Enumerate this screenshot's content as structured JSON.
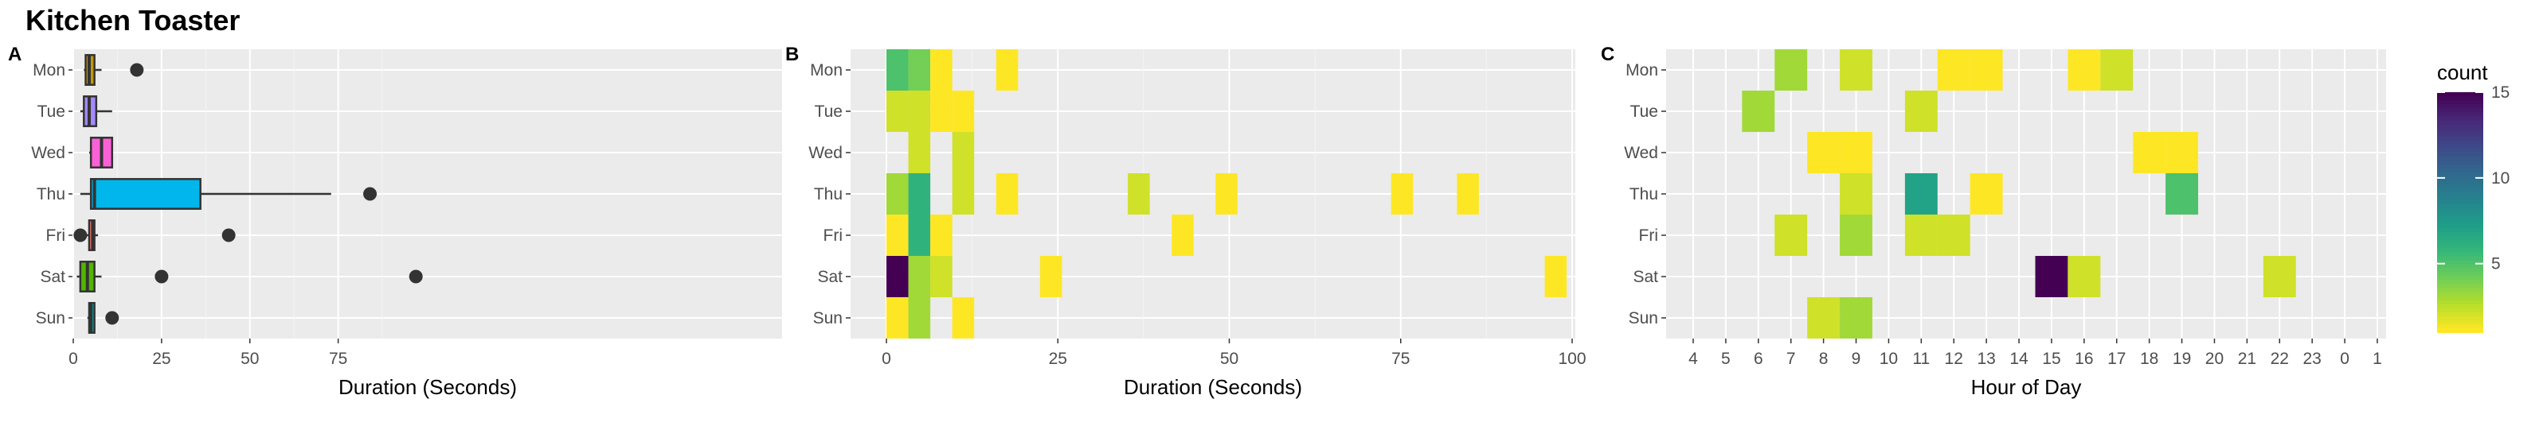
{
  "title": "Kitchen Toaster",
  "chart_data": [
    {
      "panel": "A",
      "type": "boxplot",
      "xlabel": "Duration (Seconds)",
      "ylabel": "",
      "categories": [
        "Mon",
        "Tue",
        "Wed",
        "Thu",
        "Fri",
        "Sat",
        "Sun"
      ],
      "xlim": [
        0,
        97
      ],
      "xticks": [
        0,
        25,
        50,
        75
      ],
      "grid": true,
      "boxes": [
        {
          "day": "Mon",
          "color": "#C49A00",
          "whisker_low": 3,
          "q1": 3.5,
          "median": 4.5,
          "q3": 6,
          "whisker_high": 8,
          "outliers": [
            18
          ]
        },
        {
          "day": "Tue",
          "color": "#A58AFF",
          "whisker_low": 2,
          "q1": 3,
          "median": 4.5,
          "q3": 6.5,
          "whisker_high": 11,
          "outliers": []
        },
        {
          "day": "Wed",
          "color": "#FB61D7",
          "whisker_low": 4.5,
          "q1": 5,
          "median": 8,
          "q3": 11,
          "whisker_high": 11,
          "outliers": []
        },
        {
          "day": "Thu",
          "color": "#00B6EB",
          "whisker_low": 2,
          "q1": 5,
          "median": 6,
          "q3": 36,
          "whisker_high": 73,
          "outliers": [
            84
          ]
        },
        {
          "day": "Fri",
          "color": "#F8766D",
          "whisker_low": 3.5,
          "q1": 4.5,
          "median": 5.5,
          "q3": 6,
          "whisker_high": 7,
          "outliers": [
            2,
            44
          ]
        },
        {
          "day": "Sat",
          "color": "#53B400",
          "whisker_low": 1,
          "q1": 2,
          "median": 4,
          "q3": 6,
          "whisker_high": 8,
          "outliers": [
            25,
            97
          ]
        },
        {
          "day": "Sun",
          "color": "#00A6A7",
          "whisker_low": 4,
          "q1": 4.5,
          "median": 5,
          "q3": 6,
          "whisker_high": 6,
          "outliers": [
            11
          ]
        }
      ]
    },
    {
      "panel": "B",
      "type": "heatmap",
      "xlabel": "Duration (Seconds)",
      "ylabel": "",
      "categories": [
        "Mon",
        "Tue",
        "Wed",
        "Thu",
        "Fri",
        "Sat",
        "Sun"
      ],
      "xlim": [
        0,
        100
      ],
      "xticks": [
        0,
        25,
        50,
        75,
        100
      ],
      "grid": true,
      "bin_width": 3.2,
      "cells": [
        {
          "day": "Mon",
          "x": 0,
          "count": 5
        },
        {
          "day": "Mon",
          "x": 3.2,
          "count": 4
        },
        {
          "day": "Mon",
          "x": 6.4,
          "count": 1
        },
        {
          "day": "Mon",
          "x": 16,
          "count": 1
        },
        {
          "day": "Tue",
          "x": 0,
          "count": 2
        },
        {
          "day": "Tue",
          "x": 3.2,
          "count": 2
        },
        {
          "day": "Tue",
          "x": 6.4,
          "count": 1
        },
        {
          "day": "Tue",
          "x": 9.6,
          "count": 1
        },
        {
          "day": "Wed",
          "x": 3.2,
          "count": 2
        },
        {
          "day": "Wed",
          "x": 9.6,
          "count": 2
        },
        {
          "day": "Thu",
          "x": 0,
          "count": 3
        },
        {
          "day": "Thu",
          "x": 3.2,
          "count": 6
        },
        {
          "day": "Thu",
          "x": 9.6,
          "count": 2
        },
        {
          "day": "Thu",
          "x": 16,
          "count": 1
        },
        {
          "day": "Thu",
          "x": 35.2,
          "count": 2
        },
        {
          "day": "Thu",
          "x": 48,
          "count": 1
        },
        {
          "day": "Thu",
          "x": 73.6,
          "count": 1
        },
        {
          "day": "Thu",
          "x": 83.2,
          "count": 1
        },
        {
          "day": "Fri",
          "x": 0,
          "count": 1
        },
        {
          "day": "Fri",
          "x": 3.2,
          "count": 6
        },
        {
          "day": "Fri",
          "x": 6.4,
          "count": 1
        },
        {
          "day": "Fri",
          "x": 41.6,
          "count": 1
        },
        {
          "day": "Sat",
          "x": 0,
          "count": 15
        },
        {
          "day": "Sat",
          "x": 3.2,
          "count": 3
        },
        {
          "day": "Sat",
          "x": 6.4,
          "count": 2
        },
        {
          "day": "Sat",
          "x": 22.4,
          "count": 1
        },
        {
          "day": "Sat",
          "x": 96,
          "count": 1
        },
        {
          "day": "Sun",
          "x": 0,
          "count": 1
        },
        {
          "day": "Sun",
          "x": 3.2,
          "count": 3
        },
        {
          "day": "Sun",
          "x": 9.6,
          "count": 1
        }
      ]
    },
    {
      "panel": "C",
      "type": "heatmap",
      "xlabel": "Hour of Day",
      "ylabel": "",
      "categories": [
        "Mon",
        "Tue",
        "Wed",
        "Thu",
        "Fri",
        "Sat",
        "Sun"
      ],
      "xcategories": [
        "4",
        "5",
        "6",
        "7",
        "8",
        "9",
        "10",
        "11",
        "12",
        "13",
        "14",
        "15",
        "16",
        "17",
        "18",
        "19",
        "20",
        "21",
        "22",
        "23",
        "0",
        "1"
      ],
      "grid": true,
      "cells": [
        {
          "day": "Mon",
          "hour": "7",
          "count": 3
        },
        {
          "day": "Mon",
          "hour": "9",
          "count": 2
        },
        {
          "day": "Mon",
          "hour": "12",
          "count": 1
        },
        {
          "day": "Mon",
          "hour": "13",
          "count": 1
        },
        {
          "day": "Mon",
          "hour": "16",
          "count": 1
        },
        {
          "day": "Mon",
          "hour": "17",
          "count": 2
        },
        {
          "day": "Tue",
          "hour": "6",
          "count": 3
        },
        {
          "day": "Tue",
          "hour": "11",
          "count": 2
        },
        {
          "day": "Wed",
          "hour": "8",
          "count": 1
        },
        {
          "day": "Wed",
          "hour": "9",
          "count": 1
        },
        {
          "day": "Wed",
          "hour": "18",
          "count": 1
        },
        {
          "day": "Wed",
          "hour": "19",
          "count": 1
        },
        {
          "day": "Thu",
          "hour": "9",
          "count": 2
        },
        {
          "day": "Thu",
          "hour": "11",
          "count": 7
        },
        {
          "day": "Thu",
          "hour": "13",
          "count": 1
        },
        {
          "day": "Thu",
          "hour": "19",
          "count": 5
        },
        {
          "day": "Fri",
          "hour": "7",
          "count": 2
        },
        {
          "day": "Fri",
          "hour": "9",
          "count": 3
        },
        {
          "day": "Fri",
          "hour": "11",
          "count": 2
        },
        {
          "day": "Fri",
          "hour": "12",
          "count": 2
        },
        {
          "day": "Sat",
          "hour": "15",
          "count": 15
        },
        {
          "day": "Sat",
          "hour": "16",
          "count": 2
        },
        {
          "day": "Sat",
          "hour": "22",
          "count": 2
        },
        {
          "day": "Sun",
          "hour": "8",
          "count": 2
        },
        {
          "day": "Sun",
          "hour": "9",
          "count": 3
        }
      ],
      "legend": {
        "title": "count",
        "placement": "right",
        "ticks": [
          5,
          10,
          15
        ],
        "range": [
          1,
          15
        ],
        "colormap": "viridis (reversed)"
      }
    }
  ]
}
